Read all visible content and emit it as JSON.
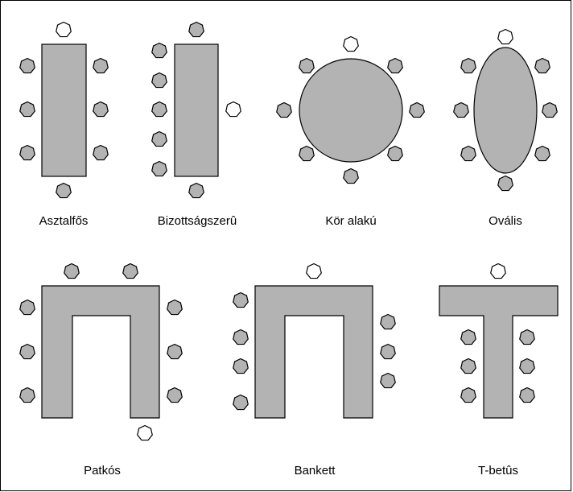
{
  "colors": {
    "background": "#ffffff",
    "table_fill": "#b3b3b3",
    "outline": "#000000",
    "seat_grey": "#b3b3b3",
    "seat_white": "#ffffff"
  },
  "layouts": [
    {
      "id": "asztalfos",
      "label": "Asztalfős"
    },
    {
      "id": "bizottsagszeru",
      "label": "Bizottságszerû"
    },
    {
      "id": "kor-alaku",
      "label": "Kör alakú"
    },
    {
      "id": "ovalis",
      "label": "Ovális"
    },
    {
      "id": "patkos",
      "label": "Patkós"
    },
    {
      "id": "bankett",
      "label": "Bankett"
    },
    {
      "id": "t-betus",
      "label": "T-betûs"
    }
  ]
}
